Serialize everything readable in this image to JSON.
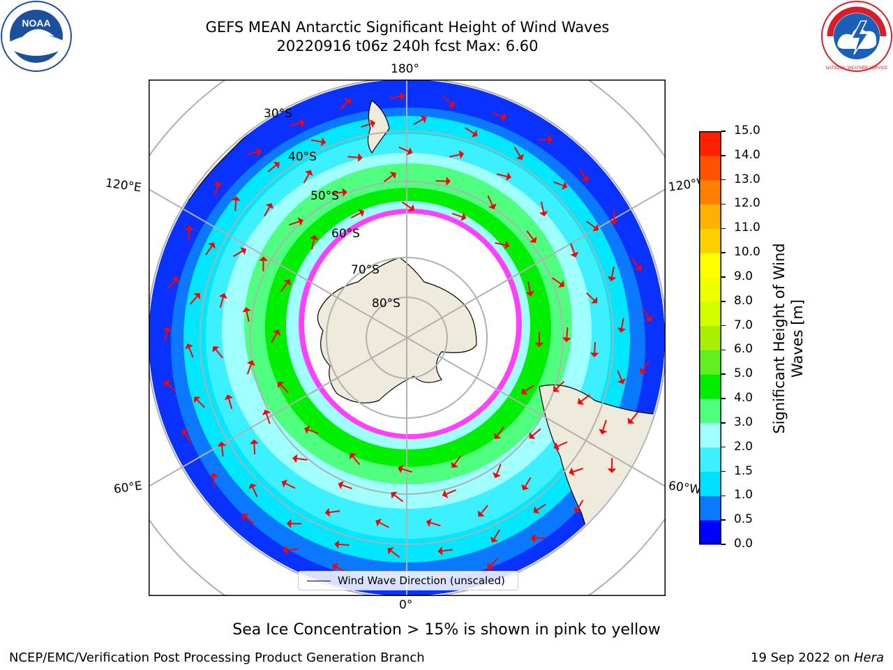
{
  "title": {
    "line1": "GEFS MEAN Antarctic Significant Height of Wind Waves",
    "line2": "20220916 t06z 240h fcst   Max: 6.60"
  },
  "map": {
    "projection": "south-polar-stereographic",
    "longitude_labels": {
      "top": "180°",
      "bottom": "0°",
      "left_upper": "120°E",
      "left_lower": "60°E",
      "right_upper": "120°W",
      "right_lower": "60°W"
    },
    "latitude_labels": [
      "30°S",
      "40°S",
      "50°S",
      "60°S",
      "70°S",
      "80°S"
    ],
    "legend": "Wind Wave Direction (unscaled)",
    "colors": {
      "land": "#efebdc",
      "antarctica": "#efebdc",
      "grid": "#b0b0b0",
      "arrow": "#ff0000",
      "sea_ice_edge": "#ff40ff"
    }
  },
  "colorbar": {
    "label": "Significant Height of Wind Waves [m]",
    "ticks": [
      "0.0",
      "0.5",
      "1.0",
      "1.5",
      "2.0",
      "3.0",
      "4.0",
      "5.0",
      "6.0",
      "7.0",
      "8.0",
      "9.0",
      "10.0",
      "11.0",
      "12.0",
      "13.0",
      "14.0",
      "15.0"
    ],
    "colors": [
      "#0000ff",
      "#0a78ff",
      "#00e0ff",
      "#3cf0ff",
      "#a0ffff",
      "#50ff80",
      "#00ee00",
      "#60f020",
      "#a8f000",
      "#d0ff00",
      "#f0ff00",
      "#ffff00",
      "#ffd000",
      "#ffb000",
      "#ff8000",
      "#ff5000",
      "#ff2000"
    ]
  },
  "caption": "Sea Ice Concentration > 15% is shown in pink to yellow",
  "footer": {
    "left": "NCEP/EMC/Verification Post Processing Product Generation Branch",
    "right_date": "19 Sep 2022 on ",
    "right_host": "Hera"
  },
  "logos": {
    "noaa_text": "NOAA",
    "nws_text": "NATIONAL WEATHER SERVICE"
  }
}
